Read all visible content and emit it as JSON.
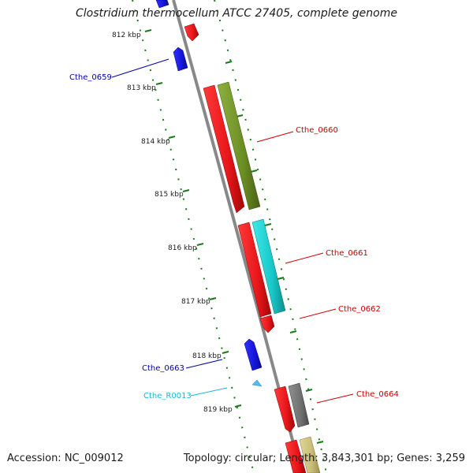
{
  "title": "Clostridium thermocellum ATCC 27405, complete genome",
  "accession": "Accession: NC_009012",
  "topology": "Topology: circular",
  "length": "Length: 3,843,301 bp",
  "genes": "Genes: 3,259",
  "colors": {
    "backbone": "#808080",
    "tick": "#1a7a1a",
    "forward_red": "#e8161b",
    "reverse_blue": "#1515d8",
    "olive": "#6b8e23",
    "cyan": "#18c8c8",
    "gray_gene": "#707070",
    "tan_gene": "#c8bc78",
    "rna": "#55bbee",
    "label_red": "#cc0000",
    "label_blue": "#0000aa",
    "label_cyan": "#19b8d8"
  },
  "kbp_labels": [
    "812 kbp",
    "813 kbp",
    "814 kbp",
    "815 kbp",
    "816 kbp",
    "817 kbp",
    "818 kbp",
    "819 kbp"
  ],
  "gene_labels": {
    "cthe_0659": "Cthe_0659",
    "cthe_0660": "Cthe_0660",
    "cthe_0661": "Cthe_0661",
    "cthe_0662": "Cthe_0662",
    "cthe_0663": "Cthe_0663",
    "cthe_R0013": "Cthe_R0013",
    "cthe_0664": "Cthe_0664"
  }
}
